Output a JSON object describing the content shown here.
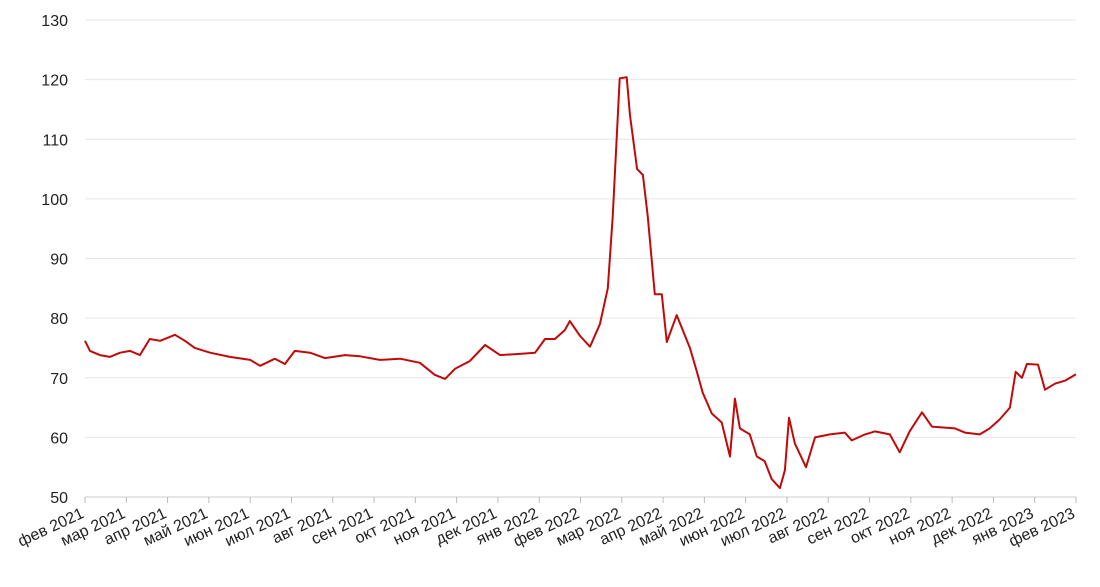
{
  "chart_data": {
    "type": "line",
    "x": [
      0,
      0.12,
      0.36,
      0.6,
      0.85,
      1.09,
      1.33,
      1.57,
      1.82,
      2.18,
      2.42,
      2.66,
      3.03,
      3.51,
      4.0,
      4.24,
      4.6,
      4.84,
      5.08,
      5.45,
      5.81,
      6.3,
      6.66,
      7.14,
      7.63,
      8.11,
      8.47,
      8.72,
      8.96,
      9.32,
      9.69,
      10.05,
      10.53,
      10.9,
      11.14,
      11.38,
      11.62,
      11.74,
      11.99,
      12.23,
      12.47,
      12.66,
      12.78,
      12.95,
      13.12,
      13.2,
      13.37,
      13.51,
      13.63,
      13.8,
      13.97,
      14.09,
      14.33,
      14.65,
      14.82,
      14.96,
      15.18,
      15.42,
      15.62,
      15.74,
      15.86,
      16.1,
      16.27,
      16.46,
      16.63,
      16.83,
      16.95,
      17.05,
      17.19,
      17.46,
      17.68,
      18.04,
      18.4,
      18.57,
      18.89,
      19.13,
      19.49,
      19.73,
      19.97,
      20.27,
      20.51,
      21.07,
      21.31,
      21.67,
      21.91,
      22.15,
      22.4,
      22.54,
      22.69,
      22.81,
      23.08,
      23.25,
      23.49,
      23.73,
      24.0
    ],
    "series": [
      {
        "color": "#c00a0a",
        "values": [
          76.2,
          74.5,
          73.8,
          73.5,
          74.2,
          74.5,
          73.8,
          76.5,
          76.2,
          77.2,
          76.2,
          75,
          74.2,
          73.5,
          73,
          72,
          73.2,
          72.3,
          74.5,
          74.2,
          73.3,
          73.8,
          73.6,
          73,
          73.2,
          72.5,
          70.5,
          69.8,
          71.5,
          72.8,
          75.5,
          73.8,
          74,
          74.2,
          76.5,
          76.5,
          78,
          79.5,
          77,
          75.2,
          79,
          85,
          97,
          120.2,
          120.4,
          114,
          105,
          104,
          97,
          84,
          84,
          76,
          80.5,
          75,
          71,
          67.5,
          64,
          62.5,
          56.8,
          66.5,
          61.5,
          60.5,
          56.8,
          56,
          53,
          51.5,
          54.5,
          63.3,
          59,
          55,
          60,
          60.5,
          60.8,
          59.5,
          60.5,
          61,
          60.5,
          57.5,
          61,
          64.2,
          61.8,
          61.5,
          60.8,
          60.5,
          61.5,
          63,
          65,
          71,
          70,
          72.3,
          72.2,
          68,
          69,
          69.5,
          70.6
        ]
      }
    ],
    "xlim": [
      0,
      24
    ],
    "xticks": [
      {
        "value": 0,
        "label": "фев 2021"
      },
      {
        "value": 1,
        "label": "мар 2021"
      },
      {
        "value": 2,
        "label": "апр 2021"
      },
      {
        "value": 3,
        "label": "май 2021"
      },
      {
        "value": 4,
        "label": "июн 2021"
      },
      {
        "value": 5,
        "label": "июл 2021"
      },
      {
        "value": 6,
        "label": "авг 2021"
      },
      {
        "value": 7,
        "label": "сен 2021"
      },
      {
        "value": 8,
        "label": "окт 2021"
      },
      {
        "value": 9,
        "label": "ноя 2021"
      },
      {
        "value": 10,
        "label": "дек 2021"
      },
      {
        "value": 11,
        "label": "янв 2022"
      },
      {
        "value": 12,
        "label": "фев 2022"
      },
      {
        "value": 13,
        "label": "мар 2022"
      },
      {
        "value": 14,
        "label": "апр 2022"
      },
      {
        "value": 15,
        "label": "май 2022"
      },
      {
        "value": 16,
        "label": "июн 2022"
      },
      {
        "value": 17,
        "label": "июл 2022"
      },
      {
        "value": 18,
        "label": "авг 2022"
      },
      {
        "value": 19,
        "label": "сен 2022"
      },
      {
        "value": 20,
        "label": "окт 2022"
      },
      {
        "value": 21,
        "label": "ноя 2022"
      },
      {
        "value": 22,
        "label": "дек 2022"
      },
      {
        "value": 23,
        "label": "янв 2023"
      },
      {
        "value": 24,
        "label": "фев 2023"
      }
    ],
    "ylim": [
      50,
      130
    ],
    "yticks": [
      50,
      60,
      70,
      80,
      90,
      100,
      110,
      120,
      130
    ],
    "grid": true
  }
}
